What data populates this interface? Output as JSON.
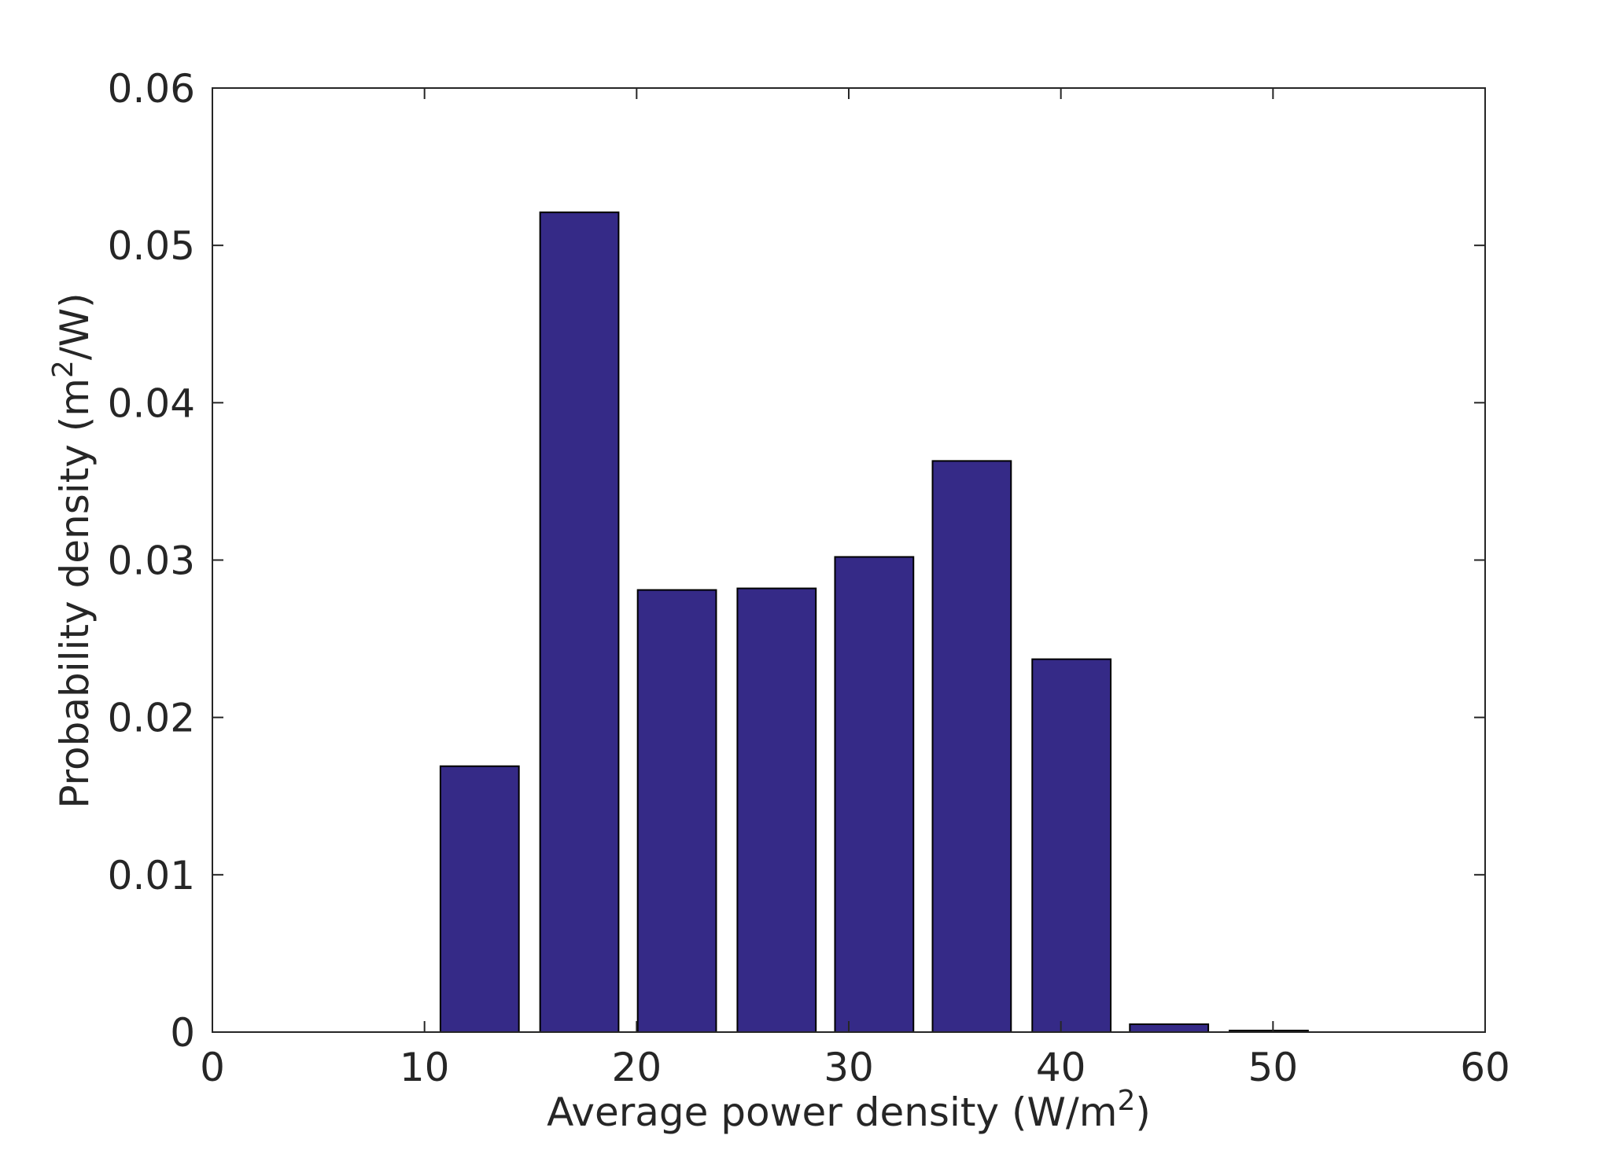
{
  "chart_data": {
    "type": "bar",
    "xlabel": {
      "text": "Average power density (W/m",
      "superscript": "2",
      "suffix": ")"
    },
    "ylabel": {
      "text": "Probability density (m",
      "superscript": "2",
      "suffix": "/W)"
    },
    "xlim": [
      0,
      60
    ],
    "ylim": [
      0,
      0.06
    ],
    "x_ticks": [
      0,
      10,
      20,
      30,
      40,
      50,
      60
    ],
    "y_ticks": [
      0,
      0.01,
      0.02,
      0.03,
      0.04,
      0.05,
      0.06
    ],
    "x_tick_labels": [
      "0",
      "10",
      "20",
      "30",
      "40",
      "50",
      "60"
    ],
    "y_tick_labels": [
      "0",
      "0.01",
      "0.02",
      "0.03",
      "0.04",
      "0.05",
      "0.06"
    ],
    "bar_width": 3.7,
    "x": [
      12.6,
      17.3,
      21.9,
      26.6,
      31.2,
      35.8,
      40.5,
      45.1,
      49.8
    ],
    "values": [
      0.0169,
      0.0521,
      0.0281,
      0.0282,
      0.0302,
      0.0363,
      0.0237,
      0.0005,
      0.0001
    ],
    "bar_color": "#352a87",
    "bar_edge_color": "#000000",
    "axis_color": "#262626",
    "grid": false,
    "box": true
  }
}
